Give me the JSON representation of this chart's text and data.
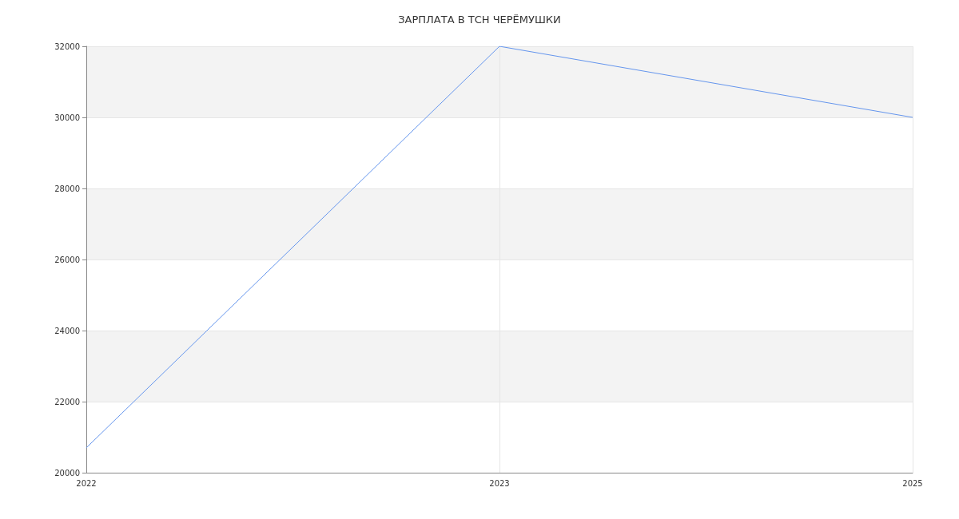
{
  "chart_data": {
    "type": "line",
    "title": "ЗАРПЛАТА В ТСН ЧЕРЁМУШКИ",
    "categories": [
      "2022",
      "2023",
      "2025"
    ],
    "series": [
      {
        "color": "#6495ed",
        "values": [
          20700,
          32000,
          30000
        ]
      }
    ],
    "ylim": [
      20000,
      32000
    ],
    "yticks": [
      20000,
      22000,
      24000,
      26000,
      28000,
      30000,
      32000
    ],
    "grid": true,
    "marker": "none"
  }
}
